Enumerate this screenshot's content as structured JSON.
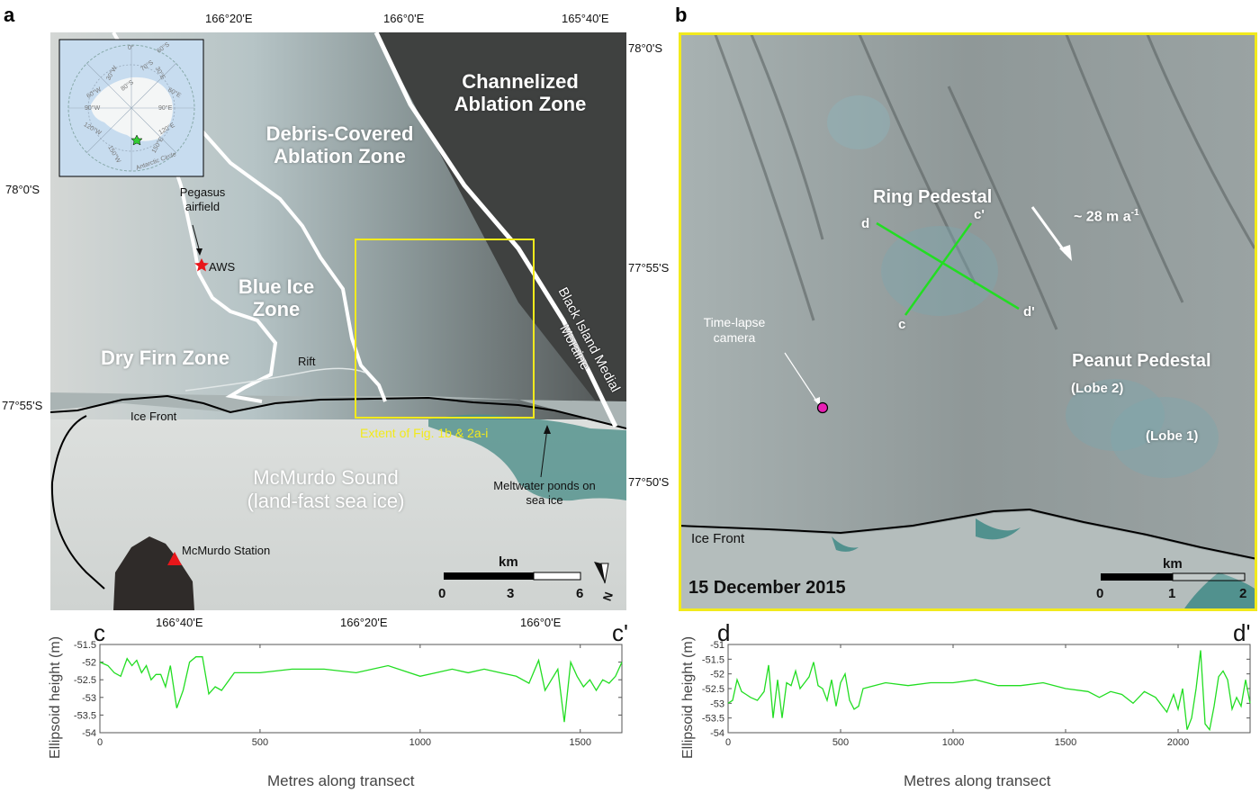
{
  "panel_a": {
    "label": "a",
    "top_longitudes": [
      "166°20'E",
      "166°0'E",
      "165°40'E"
    ],
    "bottom_longitudes": [
      "166°40'E",
      "166°20'E",
      "166°0'E"
    ],
    "left_latitudes": [
      "78°0'S",
      "77°55'S"
    ],
    "right_latitudes": [
      "78°0'S",
      "77°55'S",
      "77°50'S"
    ],
    "zones": {
      "channelized": "Channelized Ablation Zone",
      "debris": "Debris-Covered Ablation Zone",
      "blue_ice": "Blue Ice Zone",
      "dry_firn": "Dry Firn Zone"
    },
    "annotations": {
      "pegasus": "Pegasus airfield",
      "aws": "AWS",
      "rift": "Rift",
      "ice_front": "Ice Front",
      "extent": "Extent of Fig. 1b & 2a-i",
      "moraine": "Black Island Medial Moraine",
      "mcmurdo_sound": "McMurdo Sound (land-fast sea ice)",
      "meltwater": "Meltwater ponds on sea ice",
      "station": "McMurdo Station"
    },
    "scale": {
      "unit": "km",
      "ticks": [
        "0",
        "3",
        "6"
      ]
    },
    "north": "N",
    "inset": {
      "lat_labels": [
        "60°S",
        "70°S",
        "80°S"
      ],
      "lon_labels": [
        "0°",
        "30°W",
        "60°W",
        "90°W",
        "120°W",
        "150°W",
        "30°E",
        "60°E",
        "90°E",
        "120°E",
        "150°E"
      ],
      "circle_label": "Antarctic Circle"
    }
  },
  "panel_b": {
    "label": "b",
    "ring": "Ring Pedestal",
    "velocity": "~ 28 m a",
    "velocity_sup": "-1",
    "peanut": "Peanut Pedestal",
    "lobe2": "(Lobe 2)",
    "lobe1": "(Lobe 1)",
    "camera": "Time-lapse camera",
    "ice_front": "Ice Front",
    "date": "15 December 2015",
    "transect_ends": [
      "d",
      "c'",
      "c",
      "d'"
    ],
    "scale": {
      "unit": "km",
      "ticks": [
        "0",
        "1",
        "2"
      ]
    }
  },
  "colors": {
    "line": "#22dd22",
    "frame": "#f2ea1c",
    "aws": "#e8161a",
    "camera": "#e81fb4"
  },
  "chart_data": [
    {
      "type": "line",
      "start_label": "c",
      "end_label": "c'",
      "xlabel": "Metres along transect",
      "ylabel": "Ellipsoid height (m)",
      "xlim": [
        0,
        1630
      ],
      "ylim": [
        -54,
        -51.5
      ],
      "xticks": [
        0,
        500,
        1000,
        1500
      ],
      "yticks": [
        -54,
        -53.5,
        -53,
        -52.5,
        -52,
        -51.5
      ],
      "series": [
        {
          "x": [
            0,
            25,
            45,
            65,
            85,
            100,
            115,
            130,
            145,
            160,
            175,
            190,
            205,
            220,
            240,
            260,
            280,
            300,
            320,
            340,
            360,
            380,
            420,
            500,
            600,
            700,
            800,
            900,
            1000,
            1050,
            1100,
            1150,
            1200,
            1250,
            1300,
            1340,
            1370,
            1390,
            1410,
            1430,
            1450,
            1470,
            1490,
            1510,
            1530,
            1550,
            1570,
            1590,
            1610,
            1630
          ],
          "y": [
            -52.0,
            -52.1,
            -52.3,
            -52.4,
            -51.9,
            -52.1,
            -51.95,
            -52.3,
            -52.1,
            -52.5,
            -52.35,
            -52.35,
            -52.7,
            -52.1,
            -53.3,
            -52.8,
            -52.0,
            -51.85,
            -51.85,
            -52.9,
            -52.7,
            -52.8,
            -52.3,
            -52.3,
            -52.2,
            -52.2,
            -52.3,
            -52.1,
            -52.4,
            -52.3,
            -52.2,
            -52.3,
            -52.2,
            -52.3,
            -52.4,
            -52.6,
            -51.95,
            -52.8,
            -52.5,
            -52.2,
            -53.7,
            -52.0,
            -52.4,
            -52.7,
            -52.5,
            -52.8,
            -52.5,
            -52.6,
            -52.4,
            -52.0
          ]
        }
      ]
    },
    {
      "type": "line",
      "start_label": "d",
      "end_label": "d'",
      "xlabel": "Metres along transect",
      "ylabel": "Ellipsoid height (m)",
      "xlim": [
        0,
        2320
      ],
      "ylim": [
        -54,
        -51
      ],
      "xticks": [
        0,
        500,
        1000,
        1500,
        2000
      ],
      "yticks": [
        -54,
        -53.5,
        -53,
        -52.5,
        -52,
        -51.5,
        -51
      ],
      "series": [
        {
          "x": [
            0,
            20,
            40,
            60,
            80,
            100,
            130,
            160,
            180,
            200,
            220,
            240,
            260,
            280,
            300,
            320,
            340,
            360,
            380,
            400,
            420,
            440,
            460,
            480,
            500,
            520,
            540,
            560,
            580,
            600,
            700,
            800,
            900,
            1000,
            1100,
            1200,
            1300,
            1400,
            1500,
            1600,
            1650,
            1700,
            1750,
            1800,
            1850,
            1900,
            1950,
            1980,
            2000,
            2020,
            2040,
            2060,
            2080,
            2100,
            2120,
            2140,
            2160,
            2180,
            2200,
            2220,
            2240,
            2260,
            2280,
            2300,
            2320
          ],
          "y": [
            -53.0,
            -52.9,
            -52.2,
            -52.6,
            -52.7,
            -52.8,
            -52.9,
            -52.6,
            -51.7,
            -53.5,
            -52.2,
            -53.5,
            -52.3,
            -52.4,
            -51.9,
            -52.5,
            -52.3,
            -52.1,
            -51.6,
            -52.4,
            -52.5,
            -52.9,
            -52.2,
            -53.1,
            -52.3,
            -52.0,
            -52.9,
            -53.2,
            -53.1,
            -52.5,
            -52.3,
            -52.4,
            -52.3,
            -52.3,
            -52.2,
            -52.4,
            -52.4,
            -52.3,
            -52.5,
            -52.6,
            -52.8,
            -52.6,
            -52.7,
            -53.0,
            -52.6,
            -52.8,
            -53.3,
            -52.7,
            -53.2,
            -52.5,
            -53.9,
            -53.5,
            -52.5,
            -51.2,
            -53.7,
            -53.9,
            -53.1,
            -52.1,
            -51.9,
            -52.2,
            -53.2,
            -52.8,
            -53.1,
            -52.2,
            -53.0
          ]
        }
      ]
    }
  ]
}
